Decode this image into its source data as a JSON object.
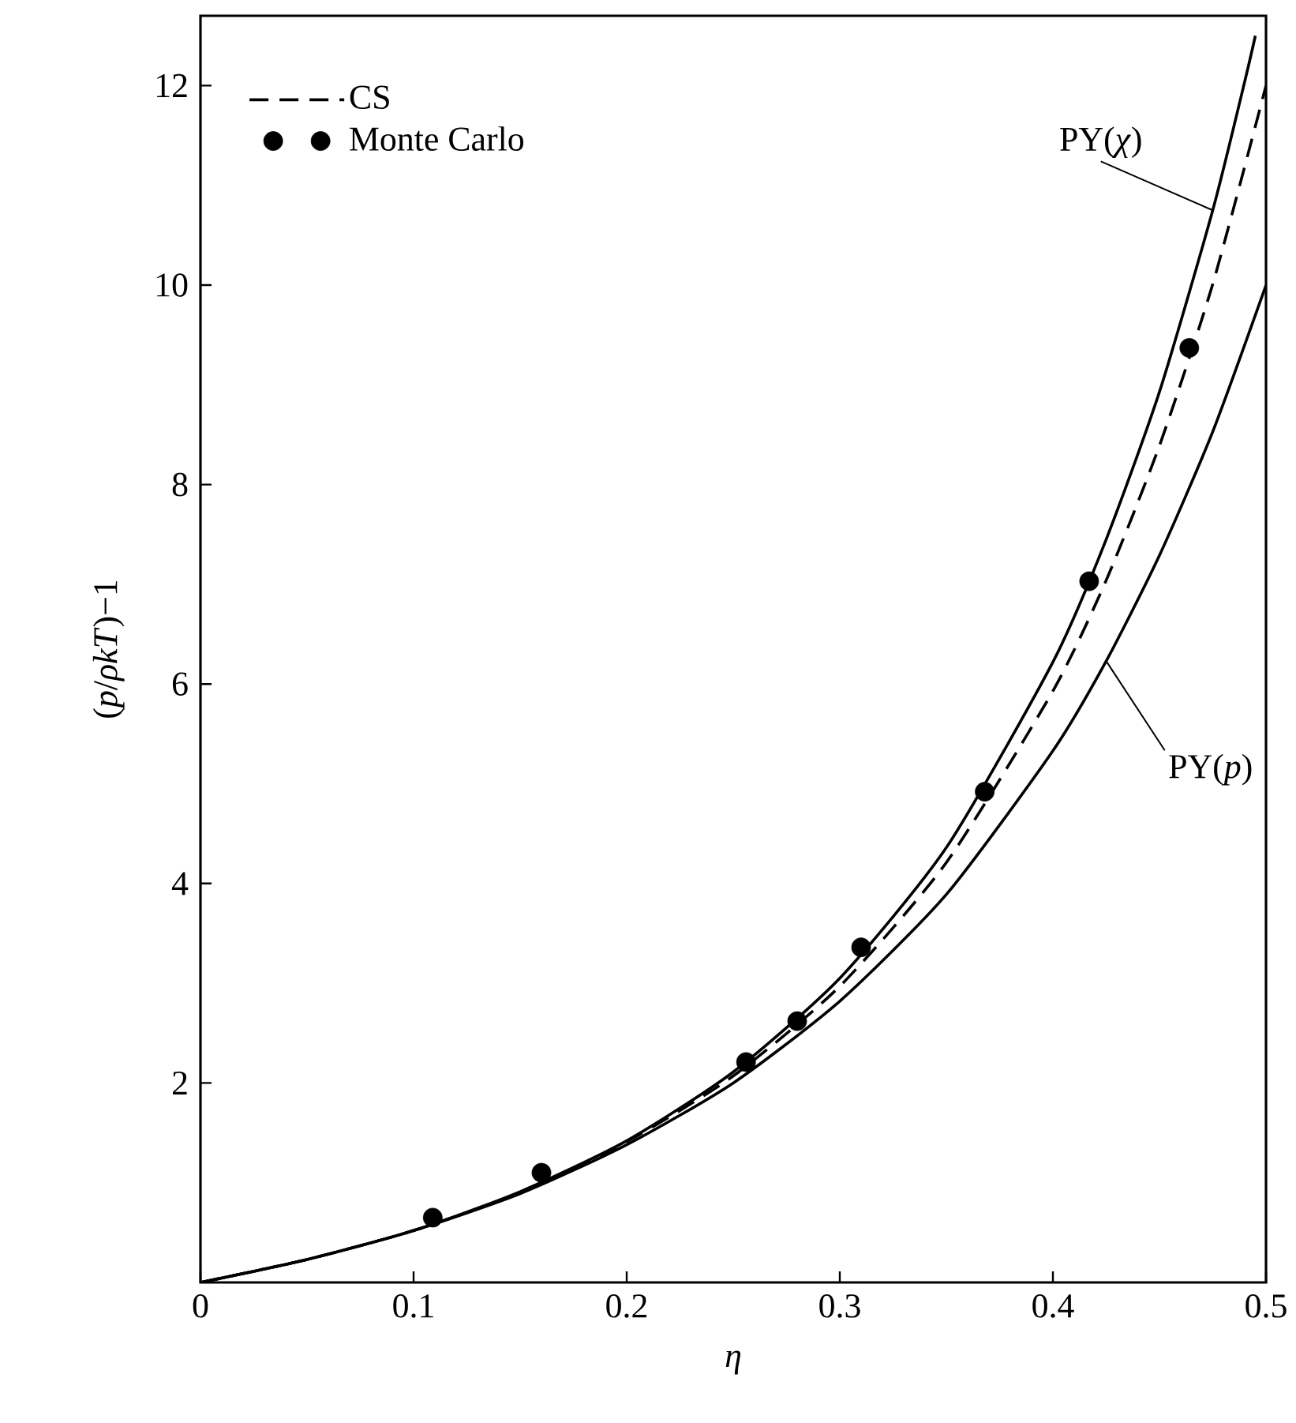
{
  "chart_data": {
    "type": "line",
    "xlabel": "η",
    "ylabel": "(*p*/*ρkT*)−1",
    "xlim": [
      0,
      0.5
    ],
    "ylim": [
      0,
      12.7
    ],
    "xticks": [
      0,
      0.1,
      0.2,
      0.3,
      0.4,
      0.5
    ],
    "yticks": [
      2,
      4,
      6,
      8,
      10,
      12
    ],
    "legend": "top left",
    "grid": false,
    "series": [
      {
        "name": "PY(*χ*)",
        "color": "#000000",
        "line_style": "solid",
        "x": [
          0,
          0.05,
          0.1,
          0.15,
          0.2,
          0.25,
          0.3,
          0.35,
          0.4,
          0.425,
          0.45,
          0.475,
          0.49,
          0.495
        ],
        "values": [
          0,
          0.23,
          0.52,
          0.91,
          1.42,
          2.11,
          3.05,
          4.36,
          6.22,
          7.45,
          8.93,
          10.75,
          12.04,
          12.5
        ]
      },
      {
        "name": "CS",
        "color": "#000000",
        "line_style": "dashed",
        "x": [
          0,
          0.05,
          0.1,
          0.15,
          0.2,
          0.25,
          0.3,
          0.35,
          0.4,
          0.425,
          0.45,
          0.475,
          0.5
        ],
        "values": [
          0,
          0.23,
          0.52,
          0.9,
          1.41,
          2.07,
          2.97,
          4.21,
          5.93,
          7.04,
          8.39,
          10.01,
          12
        ]
      },
      {
        "name": "PY(*p*)",
        "color": "#000000",
        "line_style": "solid",
        "x": [
          0,
          0.05,
          0.1,
          0.15,
          0.2,
          0.25,
          0.3,
          0.35,
          0.4,
          0.425,
          0.45,
          0.475,
          0.5
        ],
        "values": [
          0,
          0.23,
          0.52,
          0.89,
          1.38,
          2,
          2.82,
          3.89,
          5.33,
          6.23,
          7.29,
          8.53,
          10
        ]
      },
      {
        "name": "Monte Carlo",
        "type": "scatter",
        "color": "#000000",
        "marker": "circle",
        "x": [
          0.109,
          0.16,
          0.256,
          0.28,
          0.31,
          0.368,
          0.417,
          0.464
        ],
        "values": [
          0.65,
          1.1,
          2.21,
          2.62,
          3.36,
          4.92,
          7.03,
          9.37
        ]
      }
    ]
  }
}
